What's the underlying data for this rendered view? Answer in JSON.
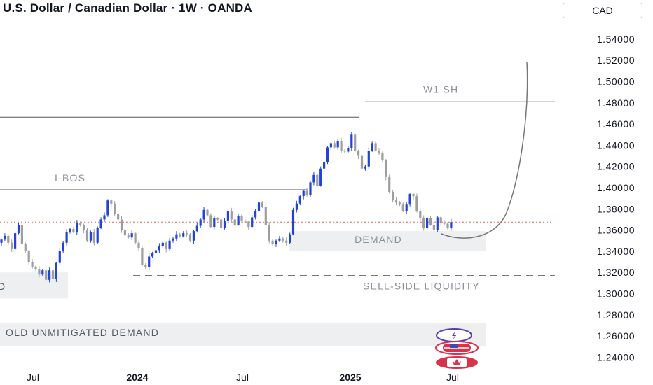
{
  "header": {
    "title": "U.S. Dollar / Canadian Dollar · 1W · OANDA",
    "currency": "CAD"
  },
  "colors": {
    "up": "#2244d6",
    "down": "#9e9e9e",
    "line": "#555555",
    "dotted_price": "#e06060",
    "zone_fill": "#eeeff1",
    "curve": "#777777"
  },
  "icons": [
    "lightning-icon",
    "us-flag-icon",
    "canada-flag-icon"
  ],
  "chart_data": {
    "type": "candlestick",
    "title": "U.S. Dollar / Canadian Dollar · 1W · OANDA",
    "y_ticks": [
      "1.54000",
      "1.52000",
      "1.50000",
      "1.48000",
      "1.46000",
      "1.44000",
      "1.42000",
      "1.40000",
      "1.38000",
      "1.36000",
      "1.34000",
      "1.32000",
      "1.30000",
      "1.28000",
      "1.26000",
      "1.24000"
    ],
    "x_ticks": [
      {
        "label": "Jul",
        "bold": false
      },
      {
        "label": "2024",
        "bold": true
      },
      {
        "label": "Jul",
        "bold": false
      },
      {
        "label": "2025",
        "bold": true
      },
      {
        "label": "Jul",
        "bold": false
      }
    ],
    "current_price": 1.3675,
    "levels": [
      {
        "name": "upper-swing-line",
        "price": 1.4665
      },
      {
        "name": "i-bos",
        "label": "I-BOS",
        "price": 1.398
      },
      {
        "name": "w1-sh",
        "label": "W1 SH",
        "price": 1.481
      },
      {
        "name": "sell-side-liquidity",
        "label": "SELL-SIDE LIQUIDITY",
        "price": 1.317
      }
    ],
    "zones": [
      {
        "name": "demand",
        "label": "DEMAND",
        "top": 1.359,
        "bottom": 1.3405
      },
      {
        "name": "left-demand",
        "label": "D",
        "top": 1.32,
        "bottom": 1.2955
      },
      {
        "name": "old-unmitigated-demand",
        "label": "OLD UNMITIGATED DEMAND",
        "top": 1.2725,
        "bottom": 1.2505
      }
    ],
    "closes": [
      1.351,
      1.3545,
      1.348,
      1.342,
      1.357,
      1.365,
      1.347,
      1.34,
      1.33,
      1.325,
      1.323,
      1.318,
      1.322,
      1.313,
      1.322,
      1.314,
      1.329,
      1.34,
      1.348,
      1.358,
      1.361,
      1.358,
      1.367,
      1.365,
      1.36,
      1.35,
      1.358,
      1.348,
      1.362,
      1.37,
      1.374,
      1.388,
      1.385,
      1.375,
      1.37,
      1.36,
      1.355,
      1.353,
      1.357,
      1.348,
      1.343,
      1.327,
      1.325,
      1.335,
      1.338,
      1.341,
      1.345,
      1.348,
      1.342,
      1.35,
      1.352,
      1.356,
      1.354,
      1.357,
      1.356,
      1.35,
      1.359,
      1.364,
      1.37,
      1.379,
      1.374,
      1.363,
      1.371,
      1.37,
      1.362,
      1.369,
      1.378,
      1.37,
      1.365,
      1.373,
      1.369,
      1.368,
      1.363,
      1.372,
      1.378,
      1.386,
      1.382,
      1.365,
      1.35,
      1.347,
      1.35,
      1.352,
      1.35,
      1.348,
      1.356,
      1.379,
      1.385,
      1.392,
      1.397,
      1.393,
      1.405,
      1.412,
      1.402,
      1.418,
      1.424,
      1.438,
      1.442,
      1.438,
      1.444,
      1.435,
      1.434,
      1.437,
      1.45,
      1.435,
      1.43,
      1.418,
      1.42,
      1.435,
      1.442,
      1.435,
      1.433,
      1.426,
      1.41,
      1.396,
      1.388,
      1.386,
      1.384,
      1.378,
      1.384,
      1.394,
      1.392,
      1.378,
      1.371,
      1.362,
      1.371,
      1.365,
      1.36,
      1.372,
      1.367,
      1.366,
      1.362,
      1.3675
    ]
  }
}
